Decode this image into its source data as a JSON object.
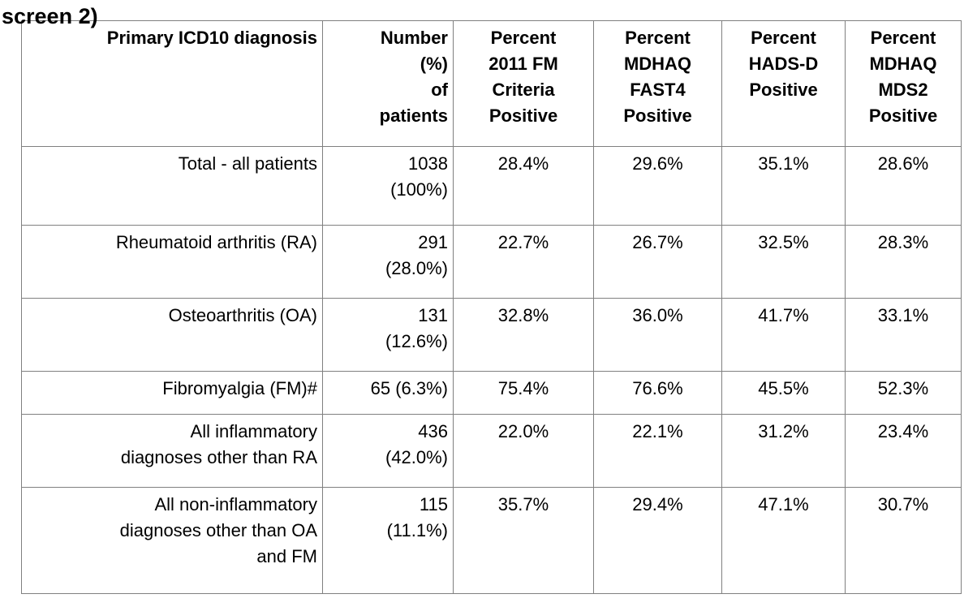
{
  "page": {
    "clipped_caption": "screen 2)"
  },
  "colors": {
    "table_border": "#808080",
    "text": "#000000",
    "background": "#ffffff"
  },
  "table": {
    "headers": [
      "Primary ICD10 diagnosis",
      "Number\n(%)\nof\npatients",
      "Percent\n2011 FM\nCriteria\nPositive",
      "Percent\nMDHAQ\nFAST4\nPositive",
      "Percent\nHADS-D\nPositive",
      "Percent\nMDHAQ\nMDS2\nPositive"
    ],
    "rows": [
      [
        "Total - all patients",
        "1038\n(100%)",
        "28.4%",
        "29.6%",
        "35.1%",
        "28.6%"
      ],
      [
        "Rheumatoid arthritis (RA)",
        "291\n(28.0%)",
        "22.7%",
        "26.7%",
        "32.5%",
        "28.3%"
      ],
      [
        "Osteoarthritis (OA)",
        "131\n(12.6%)",
        "32.8%",
        "36.0%",
        "41.7%",
        "33.1%"
      ],
      [
        "Fibromyalgia (FM)#",
        "65 (6.3%)",
        "75.4%",
        "76.6%",
        "45.5%",
        "52.3%"
      ],
      [
        "All inflammatory\ndiagnoses other than RA",
        "436\n(42.0%)",
        "22.0%",
        "22.1%",
        "31.2%",
        "23.4%"
      ],
      [
        "All non-inflammatory\ndiagnoses other than OA\nand FM",
        "115\n(11.1%)",
        "35.7%",
        "29.4%",
        "47.1%",
        "30.7%"
      ]
    ]
  }
}
